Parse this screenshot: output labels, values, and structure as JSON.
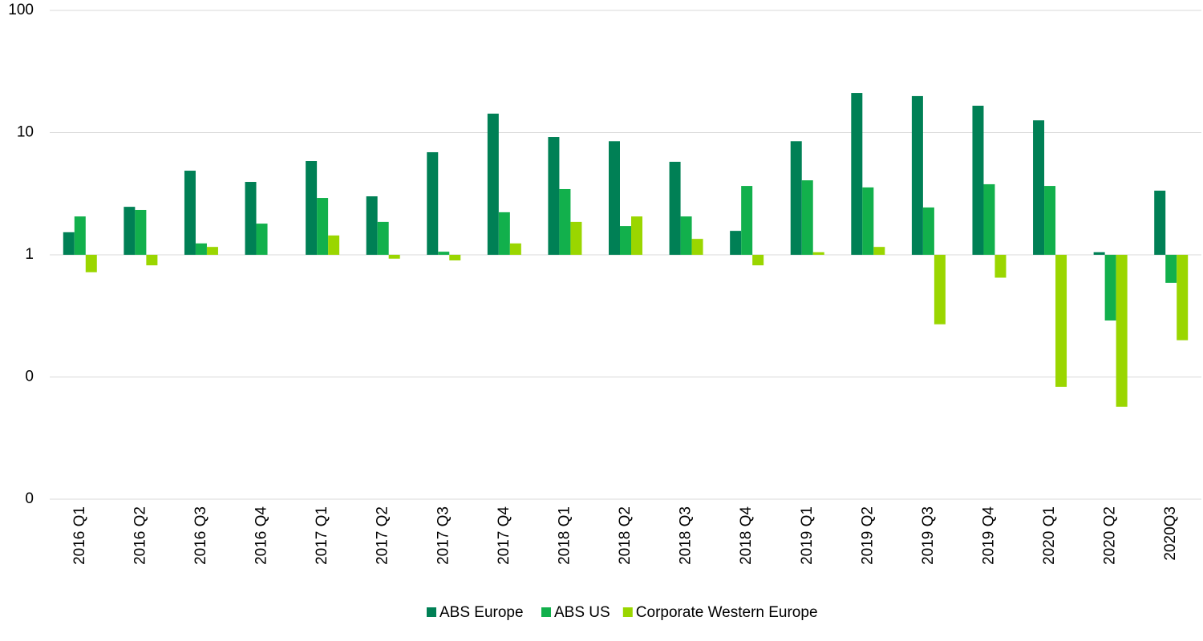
{
  "chart_data": {
    "type": "bar",
    "log_scale": true,
    "grid": true,
    "legend": "bottom",
    "categories": [
      "2016 Q1",
      "2016 Q2",
      "2016 Q3",
      "2016 Q4",
      "2017 Q1",
      "2017 Q2",
      "2017 Q3",
      "2017 Q4",
      "2018 Q1",
      "2018 Q2",
      "2018 Q3",
      "2018 Q4",
      "2019 Q1",
      "2019 Q2",
      "2019 Q3",
      "2019 Q4",
      "2020 Q1",
      "2020 Q2",
      "2020Q3"
    ],
    "series": [
      {
        "name": "ABS Europe",
        "color": "#008055",
        "values": [
          1.53,
          2.47,
          4.88,
          3.95,
          5.85,
          3.01,
          6.91,
          14.3,
          9.2,
          8.5,
          5.77,
          1.57,
          8.5,
          21.1,
          19.9,
          16.6,
          12.6,
          1.05,
          3.35
        ]
      },
      {
        "name": "ABS US",
        "color": "#12b04c",
        "values": [
          2.06,
          2.33,
          1.24,
          1.8,
          2.92,
          1.86,
          1.06,
          2.23,
          3.45,
          1.72,
          2.06,
          3.66,
          4.07,
          3.56,
          2.44,
          3.78,
          3.66,
          0.29,
          0.59
        ]
      },
      {
        "name": "Corporate Western Europe",
        "color": "#9ad600",
        "values": [
          0.72,
          0.82,
          1.16,
          null,
          1.44,
          0.93,
          0.9,
          1.24,
          1.86,
          2.06,
          1.35,
          0.82,
          1.05,
          1.16,
          0.27,
          0.65,
          0.083,
          0.057,
          0.2
        ]
      }
    ],
    "ylim": [
      0.01,
      100
    ],
    "yticks": [
      {
        "value": 0.01,
        "label": "0"
      },
      {
        "value": 0.1,
        "label": "0"
      },
      1,
      10,
      100
    ]
  }
}
